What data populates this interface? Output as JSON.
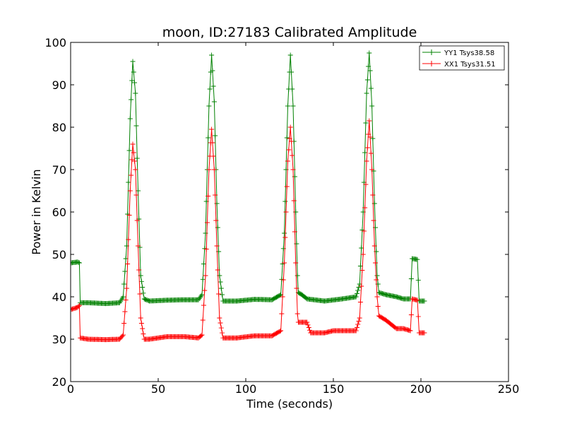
{
  "chart_data": {
    "type": "line",
    "title": "moon, ID:27183 Calibrated Amplitude",
    "xlabel": "Time (seconds)",
    "ylabel": "Power in Kelvin",
    "xlim": [
      0,
      250
    ],
    "ylim": [
      20,
      100
    ],
    "xticks": [
      "0",
      "50",
      "100",
      "150",
      "200",
      "250"
    ],
    "yticks": [
      "20",
      "30",
      "40",
      "50",
      "60",
      "70",
      "80",
      "90",
      "100"
    ],
    "grid": false,
    "legend_position": "top-right",
    "marker": "+",
    "series": [
      {
        "name": "YY1 Tsys38.58",
        "color": "#008000",
        "points": [
          [
            0,
            48
          ],
          [
            4,
            48.2
          ],
          [
            5,
            48
          ],
          [
            5.5,
            38.6
          ],
          [
            10,
            38.6
          ],
          [
            20,
            38.4
          ],
          [
            28,
            38.6
          ],
          [
            30,
            40
          ],
          [
            32,
            52
          ],
          [
            34,
            82
          ],
          [
            35.5,
            95.5
          ],
          [
            37,
            88
          ],
          [
            38.5,
            65
          ],
          [
            40,
            45
          ],
          [
            42,
            39.5
          ],
          [
            45,
            39
          ],
          [
            55,
            39.2
          ],
          [
            65,
            39.3
          ],
          [
            73,
            39.3
          ],
          [
            75,
            40.5
          ],
          [
            77,
            55
          ],
          [
            79,
            85
          ],
          [
            80.5,
            97
          ],
          [
            82,
            86
          ],
          [
            83.5,
            62
          ],
          [
            85,
            45
          ],
          [
            87,
            39
          ],
          [
            95,
            39
          ],
          [
            105,
            39.4
          ],
          [
            115,
            39.3
          ],
          [
            120,
            40.5
          ],
          [
            122,
            55
          ],
          [
            124,
            85
          ],
          [
            125.5,
            97
          ],
          [
            127,
            85
          ],
          [
            128.5,
            60
          ],
          [
            129.5,
            45
          ],
          [
            130,
            41
          ],
          [
            132,
            40.5
          ],
          [
            135,
            39.5
          ],
          [
            145,
            39
          ],
          [
            155,
            39.5
          ],
          [
            163,
            40
          ],
          [
            165,
            43
          ],
          [
            167,
            60
          ],
          [
            169,
            88
          ],
          [
            170.5,
            97.5
          ],
          [
            172,
            85
          ],
          [
            173.5,
            62
          ],
          [
            175,
            45
          ],
          [
            176,
            41
          ],
          [
            180,
            40.5
          ],
          [
            186,
            40
          ],
          [
            190,
            39.5
          ],
          [
            194,
            39.5
          ],
          [
            195,
            49
          ],
          [
            198,
            48.8
          ],
          [
            199,
            39
          ],
          [
            202,
            39
          ]
        ]
      },
      {
        "name": "XX1 Tsys31.51",
        "color": "#ff0000",
        "points": [
          [
            0,
            37
          ],
          [
            4,
            37.5
          ],
          [
            5,
            38
          ],
          [
            5.5,
            30.3
          ],
          [
            10,
            30
          ],
          [
            20,
            29.9
          ],
          [
            28,
            30
          ],
          [
            30,
            31
          ],
          [
            32,
            42
          ],
          [
            34,
            65
          ],
          [
            35.5,
            76
          ],
          [
            37,
            70
          ],
          [
            38.5,
            52
          ],
          [
            40,
            35
          ],
          [
            42,
            30
          ],
          [
            45,
            30
          ],
          [
            55,
            30.6
          ],
          [
            65,
            30.6
          ],
          [
            73,
            30.3
          ],
          [
            75,
            31
          ],
          [
            77,
            45
          ],
          [
            79,
            70
          ],
          [
            80.5,
            79.5
          ],
          [
            82,
            70
          ],
          [
            83.5,
            52
          ],
          [
            85,
            35
          ],
          [
            87,
            30.3
          ],
          [
            95,
            30.3
          ],
          [
            105,
            30.8
          ],
          [
            115,
            30.8
          ],
          [
            120,
            32
          ],
          [
            122,
            48
          ],
          [
            124,
            72
          ],
          [
            125.5,
            80
          ],
          [
            127,
            70
          ],
          [
            128.5,
            48
          ],
          [
            129.5,
            36
          ],
          [
            130,
            34
          ],
          [
            135,
            34
          ],
          [
            137,
            31.5
          ],
          [
            145,
            31.5
          ],
          [
            150,
            32
          ],
          [
            158,
            32
          ],
          [
            163,
            32
          ],
          [
            165,
            35
          ],
          [
            167,
            50
          ],
          [
            169,
            72
          ],
          [
            170.5,
            81.5
          ],
          [
            172,
            70
          ],
          [
            173.5,
            52
          ],
          [
            175,
            40
          ],
          [
            176,
            35.5
          ],
          [
            180,
            34.5
          ],
          [
            186,
            32.5
          ],
          [
            190,
            32.5
          ],
          [
            194,
            32
          ],
          [
            195,
            39.5
          ],
          [
            198,
            39.2
          ],
          [
            199,
            31.5
          ],
          [
            202,
            31.5
          ]
        ]
      }
    ]
  }
}
